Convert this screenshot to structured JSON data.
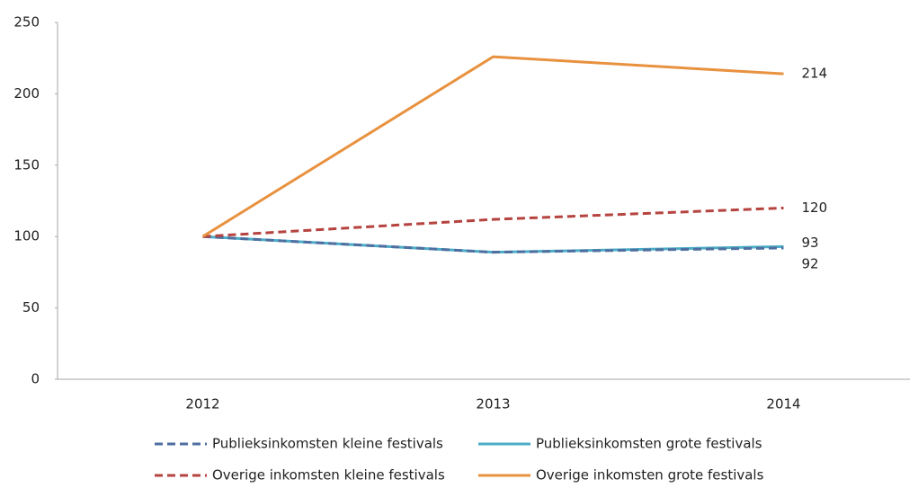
{
  "chart_data": {
    "type": "line",
    "categories": [
      "2012",
      "2013",
      "2014"
    ],
    "series": [
      {
        "name": "Publieksinkomsten kleine festivals",
        "color": "#4f6fa0",
        "dashed": true,
        "values": [
          100,
          89,
          92
        ]
      },
      {
        "name": "Publieksinkomsten grote festivals",
        "color": "#4bacc6",
        "dashed": false,
        "values": [
          100,
          89,
          93
        ]
      },
      {
        "name": "Overige inkomsten kleine festivals",
        "color": "#b5433f",
        "dashed": true,
        "values": [
          100,
          112,
          120
        ]
      },
      {
        "name": "Overige inkomsten grote festivals",
        "color": "#e8913e",
        "dashed": false,
        "values": [
          100,
          226,
          214
        ]
      }
    ],
    "ylim": [
      0,
      250
    ],
    "yticks": [
      0,
      50,
      100,
      150,
      200,
      250
    ],
    "grid": false,
    "legend": "bottom"
  }
}
